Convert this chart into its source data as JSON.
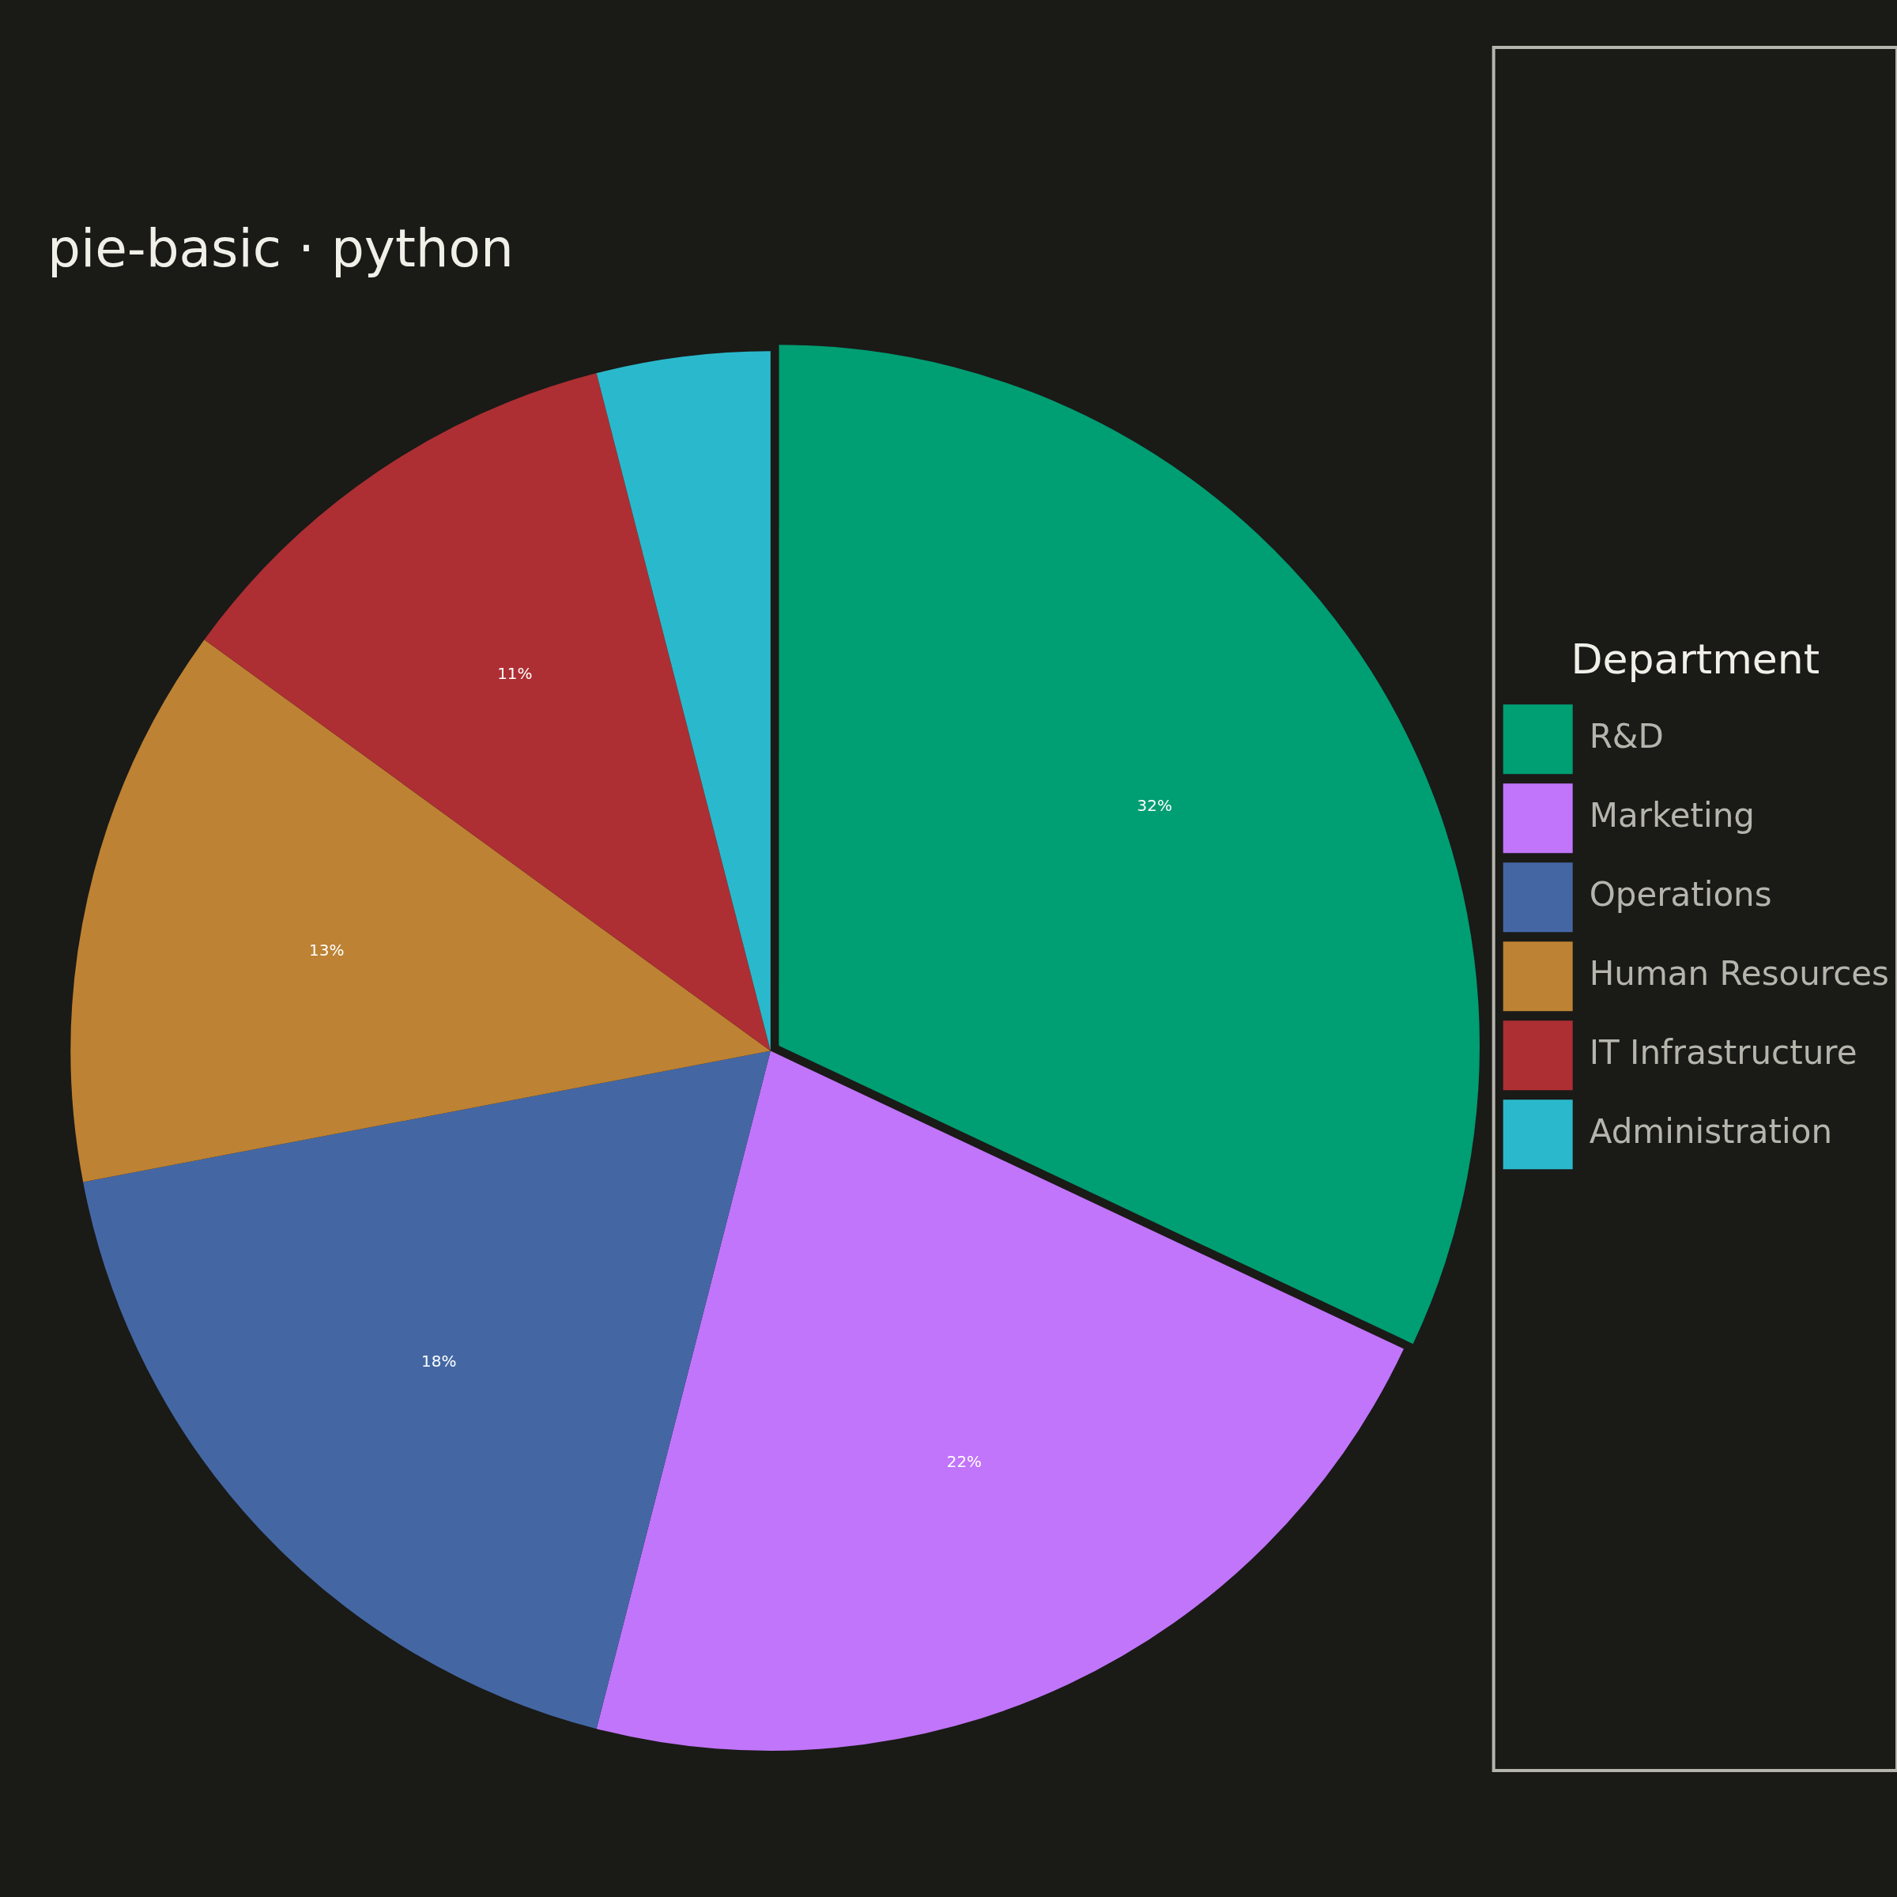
{
  "chart_data": {
    "type": "pie",
    "title": "pie-basic · python",
    "categories": [
      "R&D",
      "Marketing",
      "Operations",
      "Human Resources",
      "IT Infrastructure",
      "Administration"
    ],
    "values": [
      32,
      22,
      18,
      13,
      11,
      4
    ],
    "colors": [
      "#009e73",
      "#c175fb",
      "#4467a4",
      "#bd8233",
      "#ad2f33",
      "#2ab9cc"
    ],
    "value_labels": [
      "32%",
      "22%",
      "18%",
      "13%",
      "11%",
      null
    ],
    "legend": "right",
    "legend_title": "Department"
  }
}
